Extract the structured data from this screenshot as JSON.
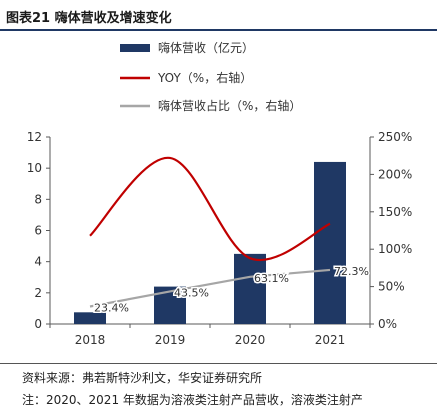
{
  "header": {
    "title": "图表21 嗨体营收及增速变化"
  },
  "footer": {
    "source": "资料来源：弗若斯特沙利文，华安证券研究所",
    "note": "注：2020、2021 年数据为溶液类注射产品营收，溶液类注射产"
  },
  "colors": {
    "bar": "#1f3864",
    "yoy": "#c00000",
    "share": "#a6a6a6",
    "title_rule": "#1f3864"
  },
  "chart_data": {
    "type": "bar",
    "categories": [
      "2018",
      "2019",
      "2020",
      "2021"
    ],
    "series": [
      {
        "name": "嗨体营收（亿元）",
        "type": "bar",
        "axis": "left",
        "values": [
          0.75,
          2.4,
          4.5,
          10.4
        ]
      },
      {
        "name": "YOY（%，右轴）",
        "type": "line",
        "axis": "right",
        "values": [
          118,
          222,
          88,
          134
        ]
      },
      {
        "name": "嗨体营收占比（%，右轴）",
        "type": "line",
        "axis": "right",
        "values": [
          23.4,
          43.5,
          63.1,
          72.3
        ],
        "labels": [
          "23.4%",
          "43.5%",
          "63.1%",
          "72.3%"
        ]
      }
    ],
    "ylim": [
      0,
      12
    ],
    "yticks": [
      "0",
      "2",
      "4",
      "6",
      "8",
      "10",
      "12"
    ],
    "y2lim": [
      0,
      250
    ],
    "y2ticks": [
      "0%",
      "50%",
      "100%",
      "150%",
      "200%",
      "250%"
    ],
    "legend_position": "top-center",
    "grid": false
  }
}
